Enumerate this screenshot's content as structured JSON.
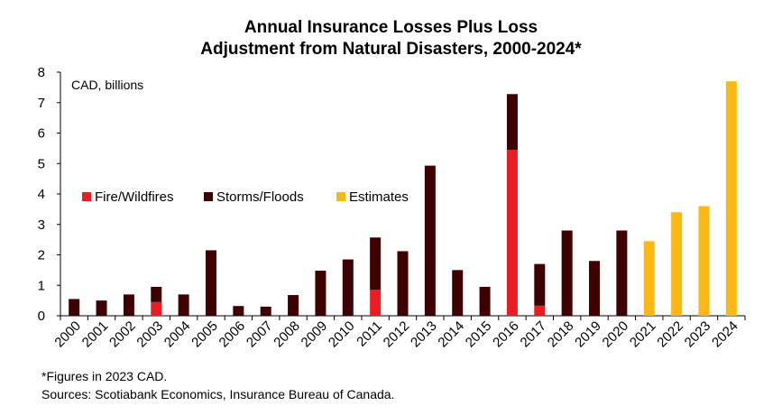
{
  "title_line1": "Annual Insurance Losses Plus Loss",
  "title_line2": "Adjustment from Natural Disasters, 2000-2024*",
  "footnote": "*Figures in 2023 CAD.",
  "sources": "Sources: Scotiabank Economics, Insurance Bureau of Canada.",
  "chart_data": {
    "type": "bar",
    "stacked": true,
    "title": "Annual Insurance Losses Plus Loss Adjustment from Natural Disasters, 2000-2024*",
    "unit_label": "CAD, billions",
    "categories": [
      "2000",
      "2001",
      "2002",
      "2003",
      "2004",
      "2005",
      "2006",
      "2007",
      "2008",
      "2009",
      "2010",
      "2011",
      "2012",
      "2013",
      "2014",
      "2015",
      "2016",
      "2017",
      "2018",
      "2019",
      "2020",
      "2021",
      "2022",
      "2023",
      "2024"
    ],
    "series": [
      {
        "name": "Fire/Wildfires",
        "color": "#ec1c24",
        "values": [
          0,
          0,
          0,
          0.45,
          0,
          0,
          0,
          0,
          0,
          0,
          0,
          0.85,
          0,
          0,
          0,
          0,
          5.45,
          0.33,
          0,
          0,
          0,
          0,
          0,
          0,
          0
        ]
      },
      {
        "name": "Storms/Floods",
        "color": "#3f0000",
        "values": [
          0.55,
          0.5,
          0.7,
          0.5,
          0.7,
          2.15,
          0.32,
          0.3,
          0.68,
          1.48,
          1.85,
          1.72,
          2.12,
          4.93,
          1.5,
          0.95,
          1.83,
          1.37,
          2.8,
          1.8,
          2.8,
          0,
          0,
          0,
          0
        ]
      },
      {
        "name": "Estimates",
        "color": "#fbb814",
        "values": [
          0,
          0,
          0,
          0,
          0,
          0,
          0,
          0,
          0,
          0,
          0,
          0,
          0,
          0,
          0,
          0,
          0,
          0,
          0,
          0,
          0,
          2.45,
          3.4,
          3.6,
          7.7
        ]
      }
    ],
    "ylim": [
      0,
      8
    ],
    "yticks": [
      0,
      1,
      2,
      3,
      4,
      5,
      6,
      7,
      8
    ],
    "legend_position": "left-middle",
    "grid": false
  }
}
